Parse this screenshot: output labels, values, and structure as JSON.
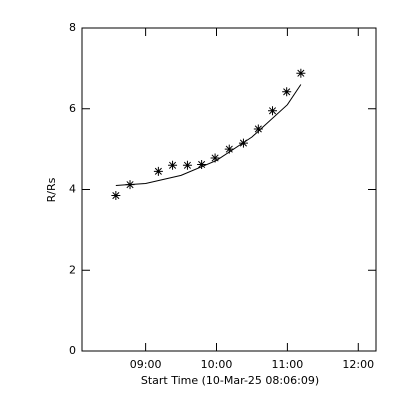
{
  "chart_data": {
    "type": "scatter",
    "xlabel": "Start Time (10-Mar-25 08:06:09)",
    "ylabel": "R/Rs",
    "xlim": [
      8.1025,
      12.25
    ],
    "ylim": [
      0,
      8
    ],
    "xticks": [
      {
        "value": 9,
        "label": "09:00"
      },
      {
        "value": 10,
        "label": "10:00"
      },
      {
        "value": 11,
        "label": "11:00"
      },
      {
        "value": 12,
        "label": "12:00"
      }
    ],
    "yticks": [
      0,
      2,
      4,
      6,
      8
    ],
    "color": "#000000",
    "series": [
      {
        "x": [
          8.58,
          8.78,
          9.18,
          9.38,
          9.59,
          9.79,
          9.98,
          10.18,
          10.38,
          10.59,
          10.79,
          10.99,
          11.19
        ],
        "values": [
          3.85,
          4.12,
          4.45,
          4.6,
          4.6,
          4.62,
          4.78,
          5.0,
          5.15,
          5.5,
          5.95,
          6.42,
          6.88
        ]
      },
      {
        "x": [
          8.58,
          9.0,
          9.5,
          10.0,
          10.5,
          11.0,
          11.19
        ],
        "values": [
          4.1,
          4.15,
          4.35,
          4.72,
          5.3,
          6.1,
          6.6
        ]
      }
    ]
  }
}
